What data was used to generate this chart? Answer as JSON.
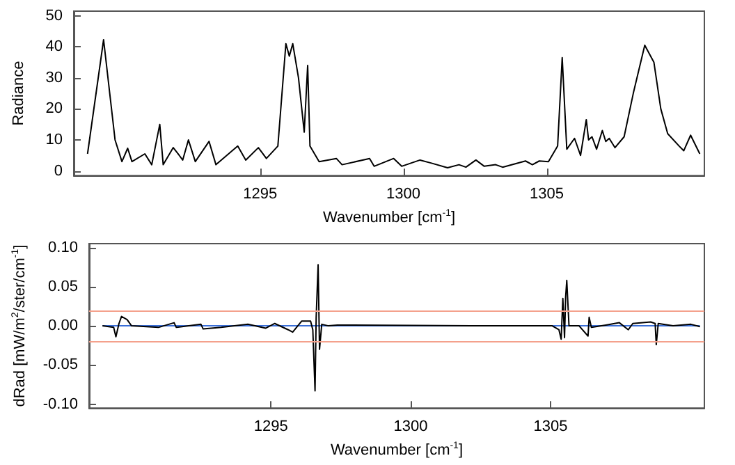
{
  "chart_data": [
    {
      "type": "line",
      "xlabel": "Wavenumber [cm$^{-1}$]",
      "ylabel": "Radiance",
      "xlim": [
        1288.5,
        1310.5
      ],
      "xticks": [
        1295,
        1300,
        1305
      ],
      "ylim": [
        -1.5,
        51.5
      ],
      "yticks": [
        0,
        10,
        20,
        30,
        40,
        50
      ],
      "grid": false,
      "marker": "none",
      "series": [
        {
          "color": "#000000",
          "x": [
            1288.98,
            1289.54,
            1289.94,
            1290.18,
            1290.38,
            1290.53,
            1290.98,
            1291.22,
            1291.5,
            1291.62,
            1291.97,
            1292.18,
            1292.3,
            1292.5,
            1292.74,
            1293.22,
            1293.46,
            1294.22,
            1294.5,
            1294.94,
            1295.22,
            1295.62,
            1295.9,
            1296.02,
            1296.14,
            1296.34,
            1296.54,
            1296.66,
            1296.74,
            1297.06,
            1297.66,
            1297.86,
            1298.82,
            1298.98,
            1299.66,
            1299.94,
            1300.58,
            1300.98,
            1301.54,
            1301.94,
            1302.18,
            1302.53,
            1302.82,
            1303.22,
            1303.46,
            1304.26,
            1304.5,
            1304.74,
            1305.06,
            1305.38,
            1305.54,
            1305.7,
            1305.97,
            1306.18,
            1306.38,
            1306.46,
            1306.58,
            1306.74,
            1306.94,
            1307.06,
            1307.18,
            1307.38,
            1307.7,
            1308.02,
            1308.42,
            1308.74,
            1308.98,
            1309.22,
            1309.62,
            1309.78,
            1310.02,
            1310.34
          ],
          "values": [
            5.5,
            42.3,
            10,
            3,
            7.3,
            3,
            5.5,
            2,
            15,
            2,
            7.5,
            5,
            3.5,
            10,
            3,
            9.5,
            2,
            8,
            3.5,
            7.5,
            4,
            8,
            41,
            37,
            41,
            30,
            12.5,
            34,
            8,
            3,
            4,
            2,
            4,
            1.5,
            4,
            1.5,
            3.5,
            2.5,
            1,
            2,
            1.2,
            3.5,
            1.5,
            2,
            1.2,
            3.2,
            2,
            3.2,
            3,
            8,
            36.5,
            7,
            10.5,
            5,
            16.5,
            10,
            11,
            7,
            13,
            9.5,
            10.5,
            7.5,
            11,
            25,
            40.5,
            35,
            20,
            12,
            8,
            6.5,
            11.5,
            5.5
          ]
        }
      ]
    },
    {
      "type": "line",
      "xlabel": "Wavenumber [cm$^{-1}$]",
      "ylabel": "dRad [mW/m$^{2}$/ster/cm$^{-1}$]",
      "xlim": [
        1288.5,
        1310.5
      ],
      "xticks": [
        1295,
        1300,
        1305
      ],
      "ylim": [
        -0.105,
        0.105
      ],
      "yticks": [
        {
          "value": -0.1,
          "label": "-0.10"
        },
        {
          "value": -0.05,
          "label": "-0.05"
        },
        {
          "value": 0,
          "label": "0.00"
        },
        {
          "value": 0.05,
          "label": "0.05"
        },
        {
          "value": 0.1,
          "label": "0.10"
        }
      ],
      "grid": false,
      "marker": "none",
      "ref_lines": [
        {
          "axis": "y",
          "value": 0.02,
          "color": "#f4a18c"
        },
        {
          "axis": "y",
          "value": -0.02,
          "color": "#f4a18c"
        }
      ],
      "series": [
        {
          "color": "#3a6fd8",
          "x": [
            1288.98,
            1310.34
          ],
          "values": [
            0,
            0
          ]
        },
        {
          "color": "#000000",
          "x": [
            1288.98,
            1289.38,
            1289.46,
            1289.57,
            1289.66,
            1289.86,
            1290.02,
            1290.98,
            1291.54,
            1291.62,
            1292.5,
            1292.58,
            1293.22,
            1294.18,
            1294.82,
            1295.14,
            1295.62,
            1295.78,
            1296.1,
            1296.42,
            1296.5,
            1296.58,
            1296.62,
            1296.69,
            1296.74,
            1296.82,
            1297.06,
            1297.38,
            1302.18,
            1305.06,
            1305.3,
            1305.38,
            1305.44,
            1305.5,
            1305.54,
            1305.58,
            1305.66,
            1306.02,
            1306.34,
            1306.38,
            1306.46,
            1306.98,
            1307.46,
            1307.78,
            1307.94,
            1308.58,
            1308.74,
            1308.78,
            1308.85,
            1309.38,
            1310.02,
            1310.34
          ],
          "values": [
            0,
            -0.002,
            -0.014,
            0.003,
            0.012,
            0.008,
            0,
            -0.002,
            0.004,
            -0.002,
            0.002,
            -0.004,
            -0.002,
            0.002,
            -0.003,
            0.003,
            -0.005,
            -0.008,
            0.006,
            0.006,
            -0.005,
            -0.083,
            0.01,
            0.078,
            -0.03,
            0.002,
            0,
            0.001,
            0,
            0,
            -0.005,
            -0.017,
            0.035,
            -0.015,
            0.037,
            0.058,
            0,
            0,
            -0.013,
            0.011,
            -0.002,
            0.001,
            0.004,
            -0.005,
            0.003,
            0.005,
            0.003,
            -0.024,
            0.003,
            0,
            0.002,
            -0.001
          ]
        }
      ]
    }
  ]
}
